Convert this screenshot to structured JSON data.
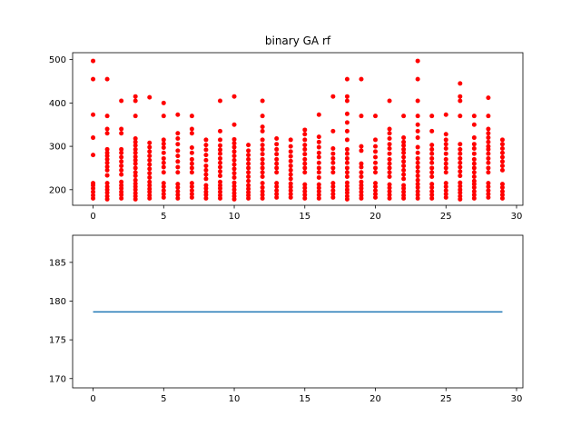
{
  "chart_data": [
    {
      "type": "scatter",
      "title": "binary GA rf",
      "xlim": [
        -1.45,
        30.45
      ],
      "ylim": [
        164,
        516
      ],
      "xticks": [
        0,
        5,
        10,
        15,
        20,
        25,
        30
      ],
      "xtick_labels": [
        "0",
        "5",
        "10",
        "15",
        "20",
        "25",
        "30"
      ],
      "yticks": [
        200,
        300,
        400,
        500
      ],
      "ytick_labels": [
        "200",
        "300",
        "400",
        "500"
      ],
      "grid": false,
      "marker_color": "#ff0000",
      "points_by_x": [
        {
          "x": 0,
          "y": [
            180,
            187,
            195,
            203,
            210,
            215,
            280,
            320,
            373,
            455,
            497
          ]
        },
        {
          "x": 1,
          "y": [
            178,
            185,
            193,
            200,
            207,
            215,
            233,
            245,
            253,
            262,
            270,
            278,
            285,
            293,
            330,
            340,
            370,
            455
          ]
        },
        {
          "x": 2,
          "y": [
            180,
            188,
            195,
            203,
            210,
            218,
            235,
            245,
            255,
            265,
            275,
            285,
            293,
            330,
            340,
            405
          ]
        },
        {
          "x": 3,
          "y": [
            178,
            185,
            192,
            200,
            207,
            214,
            222,
            232,
            240,
            250,
            260,
            268,
            276,
            285,
            293,
            302,
            310,
            318,
            370,
            405,
            415
          ]
        },
        {
          "x": 4,
          "y": [
            180,
            187,
            195,
            202,
            210,
            218,
            228,
            238,
            248,
            258,
            268,
            278,
            288,
            298,
            308,
            413
          ]
        },
        {
          "x": 5,
          "y": [
            182,
            190,
            198,
            207,
            215,
            240,
            252,
            262,
            272,
            285,
            297,
            306,
            315,
            370,
            400
          ]
        },
        {
          "x": 6,
          "y": [
            180,
            188,
            196,
            205,
            213,
            240,
            252,
            265,
            278,
            290,
            305,
            318,
            330,
            373
          ]
        },
        {
          "x": 7,
          "y": [
            182,
            190,
            198,
            207,
            215,
            240,
            250,
            260,
            270,
            285,
            297,
            330,
            340,
            370
          ]
        },
        {
          "x": 8,
          "y": [
            180,
            188,
            195,
            203,
            210,
            225,
            235,
            245,
            255,
            268,
            280,
            292,
            303,
            315
          ]
        },
        {
          "x": 9,
          "y": [
            180,
            187,
            195,
            203,
            210,
            218,
            232,
            242,
            252,
            262,
            272,
            283,
            292,
            302,
            315,
            335,
            405
          ]
        },
        {
          "x": 10,
          "y": [
            178,
            185,
            192,
            200,
            208,
            216,
            228,
            238,
            248,
            258,
            268,
            278,
            288,
            298,
            307,
            316,
            350,
            415
          ]
        },
        {
          "x": 11,
          "y": [
            180,
            187,
            194,
            202,
            210,
            220,
            230,
            240,
            250,
            260,
            270,
            280,
            290,
            303
          ]
        },
        {
          "x": 12,
          "y": [
            180,
            188,
            196,
            205,
            215,
            230,
            240,
            250,
            260,
            270,
            282,
            293,
            303,
            315,
            335,
            345,
            370,
            405
          ]
        },
        {
          "x": 13,
          "y": [
            182,
            190,
            198,
            207,
            215,
            240,
            250,
            260,
            270,
            282,
            293,
            305,
            318
          ]
        },
        {
          "x": 14,
          "y": [
            182,
            190,
            198,
            206,
            214,
            225,
            235,
            245,
            255,
            266,
            277,
            288,
            300,
            315
          ]
        },
        {
          "x": 15,
          "y": [
            180,
            188,
            196,
            204,
            212,
            240,
            250,
            260,
            270,
            282,
            293,
            303,
            315,
            328,
            338
          ]
        },
        {
          "x": 16,
          "y": [
            180,
            188,
            196,
            204,
            212,
            228,
            240,
            250,
            262,
            275,
            285,
            298,
            310,
            322,
            373
          ]
        },
        {
          "x": 17,
          "y": [
            182,
            190,
            198,
            207,
            215,
            240,
            250,
            262,
            272,
            283,
            295,
            335,
            415
          ]
        },
        {
          "x": 18,
          "y": [
            178,
            185,
            193,
            200,
            208,
            216,
            230,
            240,
            250,
            262,
            272,
            283,
            293,
            315,
            335,
            355,
            375,
            405,
            415,
            455
          ]
        },
        {
          "x": 19,
          "y": [
            180,
            187,
            195,
            203,
            210,
            218,
            230,
            240,
            252,
            260,
            290,
            300,
            370,
            455
          ]
        },
        {
          "x": 20,
          "y": [
            182,
            190,
            198,
            207,
            215,
            240,
            250,
            262,
            275,
            288,
            300,
            315,
            370
          ]
        },
        {
          "x": 21,
          "y": [
            180,
            188,
            196,
            204,
            212,
            230,
            240,
            250,
            260,
            270,
            283,
            295,
            305,
            318,
            330,
            340,
            405
          ]
        },
        {
          "x": 22,
          "y": [
            180,
            187,
            195,
            203,
            210,
            225,
            235,
            245,
            255,
            265,
            275,
            285,
            293,
            302,
            310,
            320,
            370
          ]
        },
        {
          "x": 23,
          "y": [
            180,
            188,
            196,
            205,
            213,
            222,
            232,
            242,
            252,
            262,
            272,
            285,
            298,
            320,
            335,
            350,
            370,
            405,
            455,
            497
          ]
        },
        {
          "x": 24,
          "y": [
            180,
            188,
            196,
            205,
            213,
            230,
            240,
            250,
            262,
            272,
            283,
            293,
            303,
            335,
            370
          ]
        },
        {
          "x": 25,
          "y": [
            182,
            190,
            198,
            207,
            215,
            240,
            250,
            260,
            270,
            283,
            295,
            305,
            315,
            328,
            373
          ]
        },
        {
          "x": 26,
          "y": [
            178,
            185,
            193,
            200,
            208,
            216,
            232,
            242,
            252,
            262,
            272,
            283,
            293,
            305,
            370,
            405,
            415,
            445
          ]
        },
        {
          "x": 27,
          "y": [
            180,
            188,
            196,
            205,
            213,
            220,
            230,
            240,
            250,
            260,
            270,
            283,
            295,
            305,
            320,
            350,
            370
          ]
        },
        {
          "x": 28,
          "y": [
            182,
            190,
            198,
            207,
            215,
            240,
            250,
            262,
            272,
            283,
            293,
            300,
            310,
            320,
            330,
            340,
            370,
            412
          ]
        },
        {
          "x": 29,
          "y": [
            180,
            188,
            196,
            205,
            213,
            245,
            255,
            265,
            275,
            285,
            295,
            305,
            315
          ]
        }
      ]
    },
    {
      "type": "line",
      "title": "",
      "xlim": [
        -1.45,
        30.45
      ],
      "ylim": [
        168.8,
        188.5
      ],
      "xticks": [
        0,
        5,
        10,
        15,
        20,
        25,
        30
      ],
      "xtick_labels": [
        "0",
        "5",
        "10",
        "15",
        "20",
        "25",
        "30"
      ],
      "yticks": [
        170,
        175,
        180,
        185
      ],
      "ytick_labels": [
        "170",
        "175",
        "180",
        "185"
      ],
      "grid": false,
      "line_color": "#1f77b4",
      "x": [
        0,
        29
      ],
      "y": [
        178.6,
        178.6
      ]
    }
  ]
}
